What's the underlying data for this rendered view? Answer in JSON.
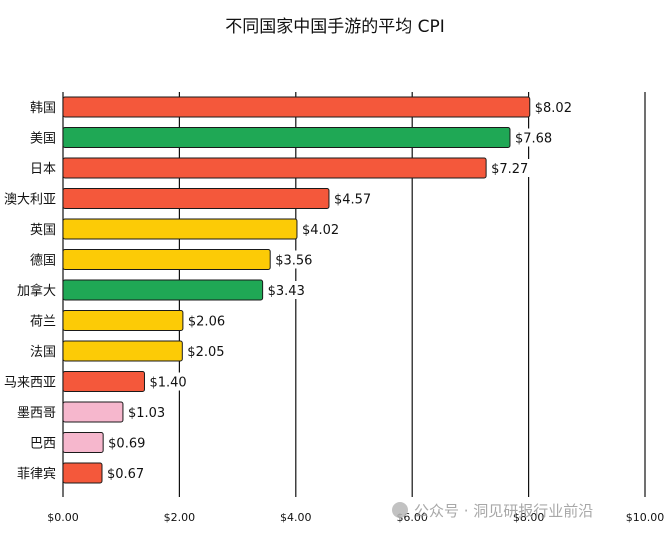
{
  "chart_data": {
    "type": "bar",
    "orientation": "horizontal",
    "title": "不同国家中国手游的平均 CPI",
    "xlabel": "",
    "ylabel": "",
    "xlim": [
      0,
      10
    ],
    "x_ticks": [
      "$0.00",
      "$2.00",
      "$4.00",
      "$6.00",
      "$8.00",
      "$10.00"
    ],
    "grid": "vertical",
    "categories": [
      "韩国",
      "美国",
      "日本",
      "澳大利亚",
      "英国",
      "德国",
      "加拿大",
      "荷兰",
      "法国",
      "马来西亚",
      "墨西哥",
      "巴西",
      "菲律宾"
    ],
    "values": [
      8.02,
      7.68,
      7.27,
      4.57,
      4.02,
      3.56,
      3.43,
      2.06,
      2.05,
      1.4,
      1.03,
      0.69,
      0.67
    ],
    "value_labels": [
      "$8.02",
      "$7.68",
      "$7.27",
      "$4.57",
      "$4.02",
      "$3.56",
      "$3.43",
      "$2.06",
      "$2.05",
      "$1.40",
      "$1.03",
      "$0.69",
      "$0.67"
    ],
    "bar_colors": [
      "#f4583b",
      "#1fa855",
      "#f4583b",
      "#f4583b",
      "#fccb06",
      "#fccb06",
      "#1fa855",
      "#fccb06",
      "#fccb06",
      "#f4583b",
      "#f6b7cd",
      "#f6b7cd",
      "#f4583b"
    ]
  },
  "watermark": {
    "text": "公众号 · 洞见研报行业前沿"
  }
}
